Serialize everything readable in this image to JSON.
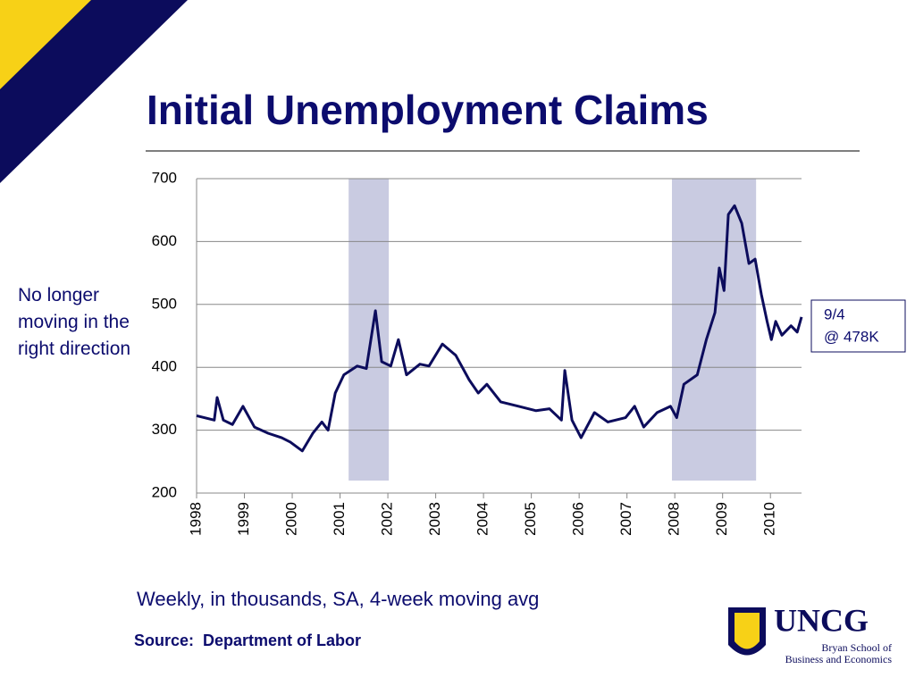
{
  "title": "Initial Unemployment Claims",
  "note": "No longer moving in the right direction",
  "callout": [
    "9/4",
    "@ 478K"
  ],
  "subtitle": "Weekly, in thousands, SA, 4-week moving avg",
  "source": "Source:  Department of Labor",
  "logo": {
    "name": "UNCG",
    "lines": [
      "Bryan School of",
      "Business and Economics"
    ]
  },
  "chart_data": {
    "type": "line",
    "x": [
      1998.0,
      1998.37,
      1998.43,
      1998.56,
      1998.75,
      1998.97,
      1999.21,
      1999.5,
      1999.78,
      1999.96,
      2000.21,
      2000.43,
      2000.62,
      2000.75,
      2000.9,
      2001.08,
      2001.36,
      2001.55,
      2001.74,
      2001.87,
      2002.06,
      2002.22,
      2002.39,
      2002.67,
      2002.86,
      2003.14,
      2003.42,
      2003.7,
      2003.89,
      2004.07,
      2004.36,
      2004.73,
      2005.1,
      2005.38,
      2005.63,
      2005.7,
      2005.85,
      2006.04,
      2006.32,
      2006.6,
      2006.97,
      2007.16,
      2007.35,
      2007.63,
      2007.91,
      2008.04,
      2008.19,
      2008.47,
      2008.66,
      2008.84,
      2008.93,
      2009.03,
      2009.12,
      2009.25,
      2009.4,
      2009.55,
      2009.68,
      2009.81,
      2009.93,
      2010.02,
      2010.11,
      2010.24,
      2010.43,
      2010.56,
      2010.65
    ],
    "series": [
      {
        "color": "#0c0c5c",
        "values": [
          323,
          316,
          352,
          316,
          309,
          338,
          305,
          295,
          288,
          281,
          267,
          295,
          313,
          300,
          359,
          388,
          402,
          398,
          490,
          409,
          402,
          444,
          388,
          405,
          402,
          437,
          419,
          380,
          359,
          373,
          345,
          338,
          331,
          334,
          316,
          395,
          316,
          288,
          328,
          313,
          320,
          338,
          305,
          328,
          338,
          320,
          373,
          388,
          444,
          487,
          558,
          522,
          643,
          657,
          629,
          565,
          572,
          516,
          473,
          444,
          473,
          451,
          466,
          456,
          480
        ]
      }
    ],
    "recessions": [
      [
        2001.18,
        2002.02
      ],
      [
        2007.94,
        2009.7
      ]
    ],
    "recession_color": "#c9cbe1",
    "xlim": [
      1998,
      2010.65
    ],
    "xticks": [
      1998,
      1999,
      2000,
      2001,
      2002,
      2003,
      2004,
      2005,
      2006,
      2007,
      2008,
      2009,
      2010
    ],
    "ylim": [
      200,
      700
    ],
    "yticks": [
      200,
      300,
      400,
      500,
      600,
      700
    ],
    "grid": true
  }
}
